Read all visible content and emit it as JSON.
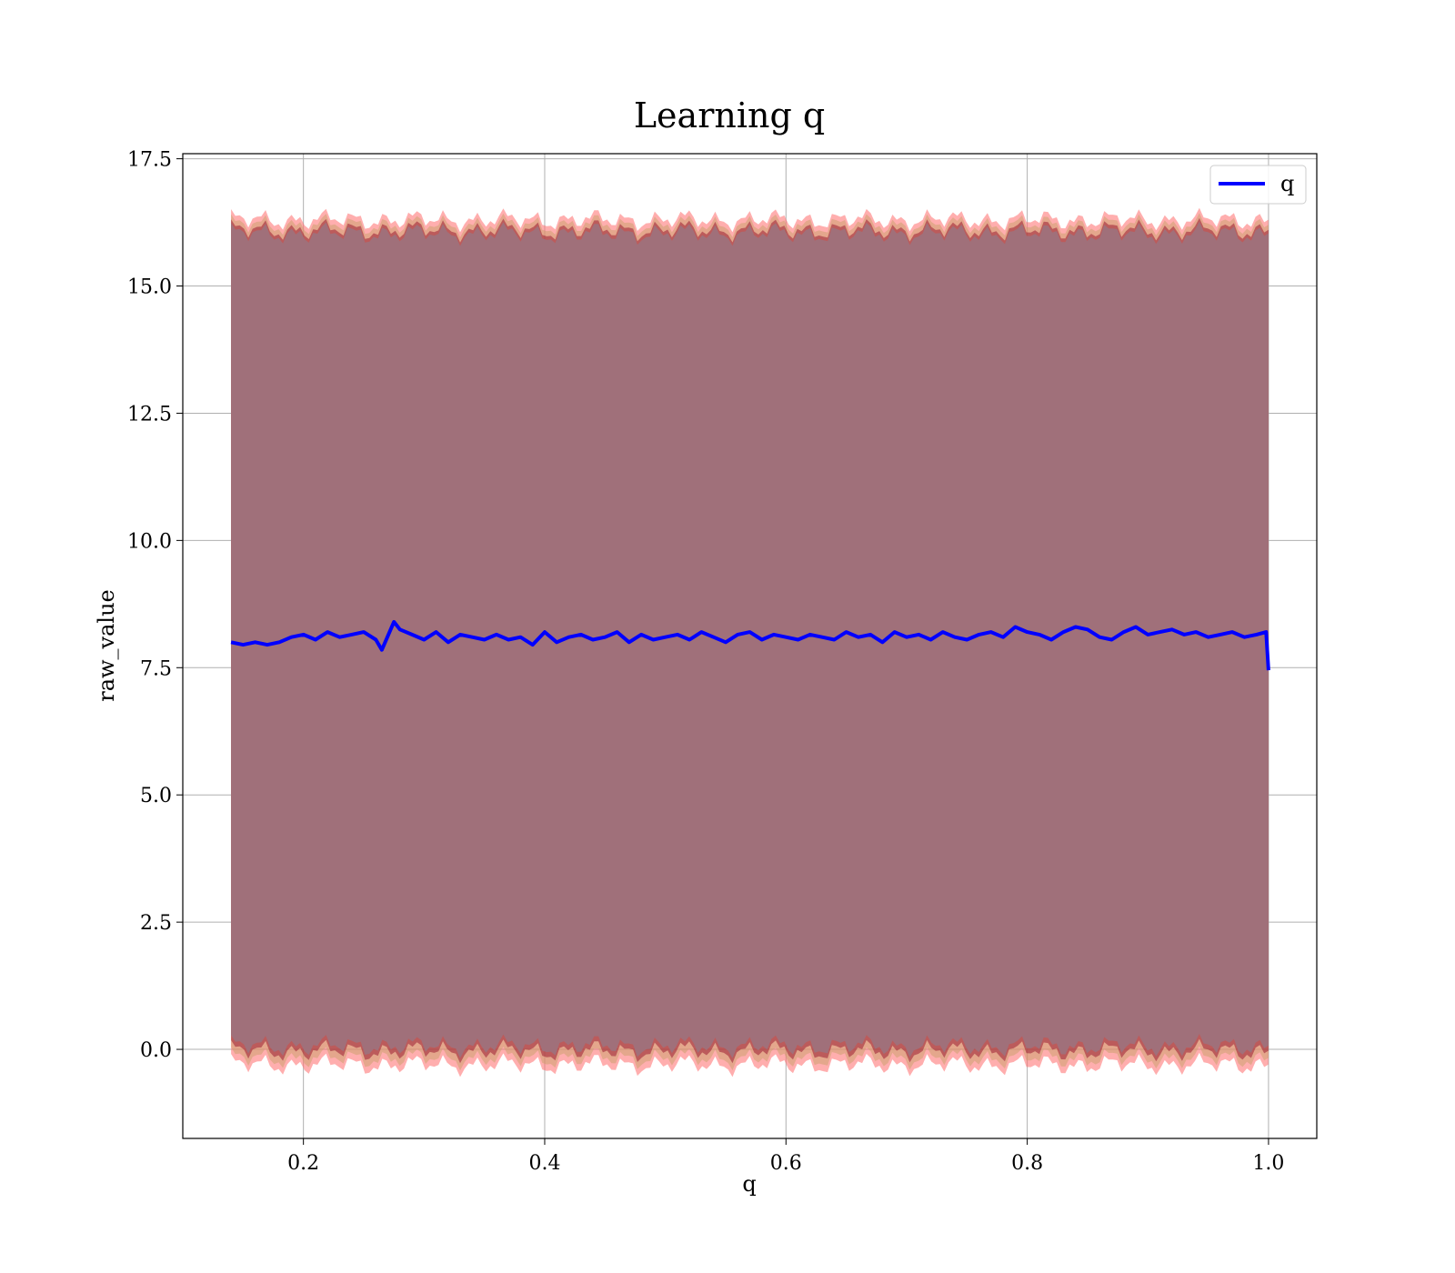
{
  "chart_data": {
    "type": "line",
    "title": "Learning q",
    "xlabel": "q",
    "ylabel": "raw_value",
    "xlim": [
      0.1,
      1.04
    ],
    "ylim": [
      -1.75,
      17.6
    ],
    "xticks": [
      0.2,
      0.4,
      0.6,
      0.8,
      1.0
    ],
    "xtick_labels": [
      "0.2",
      "0.4",
      "0.6",
      "0.8",
      "1.0"
    ],
    "yticks": [
      0.0,
      2.5,
      5.0,
      7.5,
      10.0,
      12.5,
      15.0,
      17.5
    ],
    "ytick_labels": [
      "0.0",
      "2.5",
      "5.0",
      "7.5",
      "10.0",
      "12.5",
      "15.0",
      "17.5"
    ],
    "grid": true,
    "legend_position": "top-right",
    "x_range": [
      0.14,
      1.0
    ],
    "series": [
      {
        "name": "q",
        "color": "#0000ff",
        "x": [
          0.14,
          0.15,
          0.16,
          0.17,
          0.18,
          0.19,
          0.2,
          0.21,
          0.22,
          0.23,
          0.24,
          0.25,
          0.26,
          0.265,
          0.275,
          0.28,
          0.29,
          0.3,
          0.31,
          0.32,
          0.33,
          0.34,
          0.35,
          0.36,
          0.37,
          0.38,
          0.39,
          0.4,
          0.41,
          0.42,
          0.43,
          0.44,
          0.45,
          0.46,
          0.47,
          0.48,
          0.49,
          0.5,
          0.51,
          0.52,
          0.53,
          0.54,
          0.55,
          0.56,
          0.57,
          0.58,
          0.59,
          0.6,
          0.61,
          0.62,
          0.63,
          0.64,
          0.65,
          0.66,
          0.67,
          0.68,
          0.69,
          0.7,
          0.71,
          0.72,
          0.73,
          0.74,
          0.75,
          0.76,
          0.77,
          0.78,
          0.79,
          0.8,
          0.81,
          0.82,
          0.83,
          0.84,
          0.85,
          0.86,
          0.87,
          0.88,
          0.89,
          0.9,
          0.91,
          0.92,
          0.93,
          0.94,
          0.95,
          0.96,
          0.97,
          0.98,
          0.99,
          0.998,
          1.0
        ],
        "values": [
          8.0,
          7.95,
          8.0,
          7.95,
          8.0,
          8.1,
          8.15,
          8.05,
          8.2,
          8.1,
          8.15,
          8.2,
          8.05,
          7.85,
          8.4,
          8.25,
          8.15,
          8.05,
          8.2,
          8.0,
          8.15,
          8.1,
          8.05,
          8.15,
          8.05,
          8.1,
          7.95,
          8.2,
          8.0,
          8.1,
          8.15,
          8.05,
          8.1,
          8.2,
          8.0,
          8.15,
          8.05,
          8.1,
          8.15,
          8.05,
          8.2,
          8.1,
          8.0,
          8.15,
          8.2,
          8.05,
          8.15,
          8.1,
          8.05,
          8.15,
          8.1,
          8.05,
          8.2,
          8.1,
          8.15,
          8.0,
          8.2,
          8.1,
          8.15,
          8.05,
          8.2,
          8.1,
          8.05,
          8.15,
          8.2,
          8.1,
          8.3,
          8.2,
          8.15,
          8.05,
          8.2,
          8.3,
          8.25,
          8.1,
          8.05,
          8.2,
          8.3,
          8.15,
          8.2,
          8.25,
          8.15,
          8.2,
          8.1,
          8.15,
          8.2,
          8.1,
          8.15,
          8.2,
          7.45
        ]
      }
    ],
    "band": {
      "color": "#8b0020",
      "upper_mean": 16.15,
      "lower_mean": -0.05,
      "fringe_color": "#ff6b6b"
    }
  }
}
